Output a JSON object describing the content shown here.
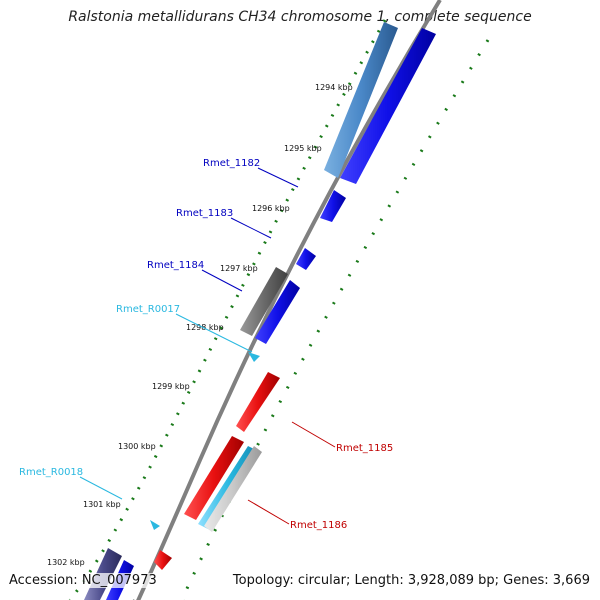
{
  "title": "Ralstonia metallidurans CH34 chromosome 1, complete sequence",
  "footer": {
    "accession": "Accession: NC_007973",
    "topology": "Topology: circular; Length: 3,928,089 bp; Genes: 3,669"
  },
  "colors": {
    "backbone": "#8a8a8a",
    "cds": "#1010e8",
    "blast_hit": "#4a88c8",
    "pseudo": "#6a6a6a",
    "rna": "#2ab8e0",
    "reverse_cds": "#e81010",
    "tick": "#1a7a1a"
  },
  "scale_ticks": [
    "1294 kbp",
    "1295 kbp",
    "1296 kbp",
    "1297 kbp",
    "1298 kbp",
    "1299 kbp",
    "1300 kbp",
    "1301 kbp",
    "1302 kbp"
  ],
  "gene_labels": [
    {
      "name": "Rmet_1182",
      "color": "#0000c0"
    },
    {
      "name": "Rmet_1183",
      "color": "#0000c0"
    },
    {
      "name": "Rmet_1184",
      "color": "#0000c0"
    },
    {
      "name": "Rmet_R0017",
      "color": "#2ab8e0"
    },
    {
      "name": "Rmet_1185",
      "color": "#c00000"
    },
    {
      "name": "Rmet_R0018",
      "color": "#2ab8e0"
    },
    {
      "name": "Rmet_1186",
      "color": "#c00000"
    }
  ]
}
